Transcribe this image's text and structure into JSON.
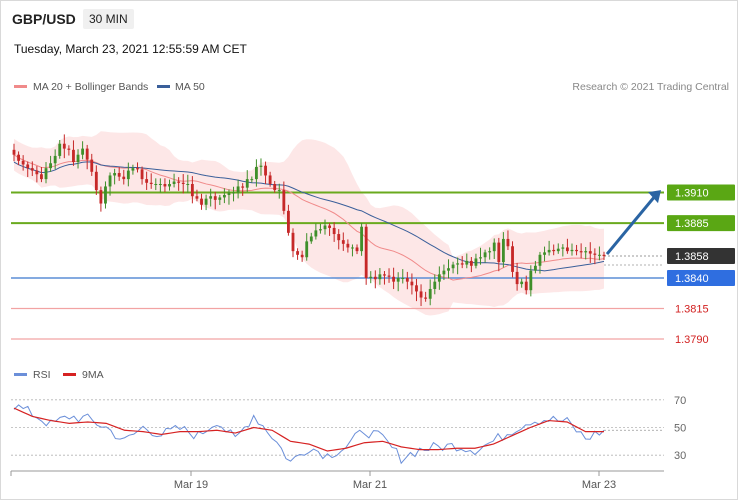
{
  "header": {
    "symbol": "GBP/USD",
    "timeframe": "30 MIN",
    "datetime": "Tuesday, March 23, 2021 12:55:59 AM CET"
  },
  "legend": {
    "ma20_label": "MA 20 + Bollinger Bands",
    "ma50_label": "MA 50",
    "rsi_label": "RSI",
    "rsi_ma_label": "9MA",
    "credit": "Research © 2021 Trading Central"
  },
  "colors": {
    "ma20": "#f08a8a",
    "ma50": "#3a5f9a",
    "bollinger_fill": "#fde4e4",
    "candle_up": "#3f8f2a",
    "candle_down": "#c62828",
    "resistance": "#6aaa1e",
    "support": "#5b8ed6",
    "support_red": "#f2a3a3",
    "label_green": "#5aa714",
    "label_blue": "#2f6ee0",
    "label_price": "#333333",
    "label_red_text": "#d22020",
    "arrow": "#2a64a3",
    "rsi": "#6b8fd9",
    "rsi_ma": "#d62222"
  },
  "chart_data": [
    {
      "type": "candlestick",
      "title": "GBP/USD",
      "timeframe": "30 MIN",
      "x_ticks": [
        "Mar 19",
        "Mar 21",
        "Mar 23"
      ],
      "price_levels": [
        {
          "label": "1.3910",
          "value": 1.391,
          "kind": "resistance"
        },
        {
          "label": "1.3885",
          "value": 1.3885,
          "kind": "resistance"
        },
        {
          "label": "1.3858",
          "value": 1.3858,
          "kind": "current"
        },
        {
          "label": "1.3840",
          "value": 1.384,
          "kind": "support"
        },
        {
          "label": "1.3815",
          "value": 1.3815,
          "kind": "support"
        },
        {
          "label": "1.3790",
          "value": 1.379,
          "kind": "support"
        }
      ],
      "series": [
        {
          "name": "MA 20 + Bollinger Bands"
        },
        {
          "name": "MA 50"
        }
      ],
      "close": [
        1.3941,
        1.3936,
        1.3933,
        1.393,
        1.3928,
        1.3925,
        1.3921,
        1.393,
        1.3934,
        1.394,
        1.395,
        1.3946,
        1.3945,
        1.3935,
        1.3941,
        1.3946,
        1.3937,
        1.3927,
        1.3912,
        1.3901,
        1.3915,
        1.3924,
        1.3926,
        1.3923,
        1.3921,
        1.3928,
        1.393,
        1.3929,
        1.3921,
        1.3918,
        1.3917,
        1.3917,
        1.3917,
        1.3915,
        1.3917,
        1.3919,
        1.3918,
        1.3917,
        1.3917,
        1.3907,
        1.3905,
        1.39,
        1.3905,
        1.3907,
        1.3904,
        1.3906,
        1.3908,
        1.391,
        1.391,
        1.3915,
        1.3914,
        1.3921,
        1.3921,
        1.3931,
        1.3932,
        1.3924,
        1.3917,
        1.3912,
        1.3912,
        1.3895,
        1.3877,
        1.3862,
        1.3859,
        1.3857,
        1.387,
        1.3874,
        1.3879,
        1.388,
        1.3883,
        1.3881,
        1.3876,
        1.3871,
        1.3868,
        1.3865,
        1.3865,
        1.3862,
        1.3882,
        1.384,
        1.3841,
        1.3839,
        1.3843,
        1.3842,
        1.3841,
        1.3837,
        1.384,
        1.384,
        1.3837,
        1.3834,
        1.3829,
        1.3824,
        1.3823,
        1.3831,
        1.3837,
        1.3843,
        1.3846,
        1.3848,
        1.3851,
        1.3852,
        1.3851,
        1.3854,
        1.385,
        1.3856,
        1.3857,
        1.3861,
        1.3862,
        1.3869,
        1.3853,
        1.3872,
        1.3866,
        1.3845,
        1.3835,
        1.3837,
        1.383,
        1.3846,
        1.385,
        1.3859,
        1.3861,
        1.3863,
        1.3862,
        1.3864,
        1.3865,
        1.3862,
        1.3863,
        1.3862,
        1.3861,
        1.3862,
        1.386,
        1.3859,
        1.3859,
        1.3858
      ],
      "ylim": [
        1.3772,
        1.3985
      ]
    },
    {
      "type": "line",
      "title": "RSI",
      "series": [
        {
          "name": "RSI"
        },
        {
          "name": "9MA"
        }
      ],
      "y_ticks": [
        70,
        50,
        30
      ],
      "ylim": [
        20,
        80
      ],
      "x": [
        0,
        4,
        8,
        12,
        16,
        20,
        24,
        28,
        32,
        36,
        40,
        44,
        48,
        52,
        56,
        60,
        64,
        68,
        72,
        76,
        80,
        84,
        88,
        92,
        96,
        100,
        104,
        108,
        112,
        116,
        120,
        124,
        128
      ],
      "rsi": [
        66,
        60,
        52,
        58,
        56,
        50,
        40,
        50,
        45,
        49,
        44,
        55,
        41,
        59,
        44,
        25,
        36,
        30,
        36,
        48,
        42,
        28,
        34,
        36,
        37,
        34,
        40,
        48,
        55,
        56,
        54,
        42,
        48
      ],
      "rsi_ma": [
        64,
        58,
        55,
        53,
        54,
        53,
        48,
        47,
        45,
        47,
        47,
        48,
        46,
        50,
        48,
        40,
        38,
        33,
        35,
        39,
        40,
        36,
        34,
        34,
        35,
        35,
        38,
        44,
        50,
        55,
        54,
        47,
        47
      ]
    }
  ]
}
